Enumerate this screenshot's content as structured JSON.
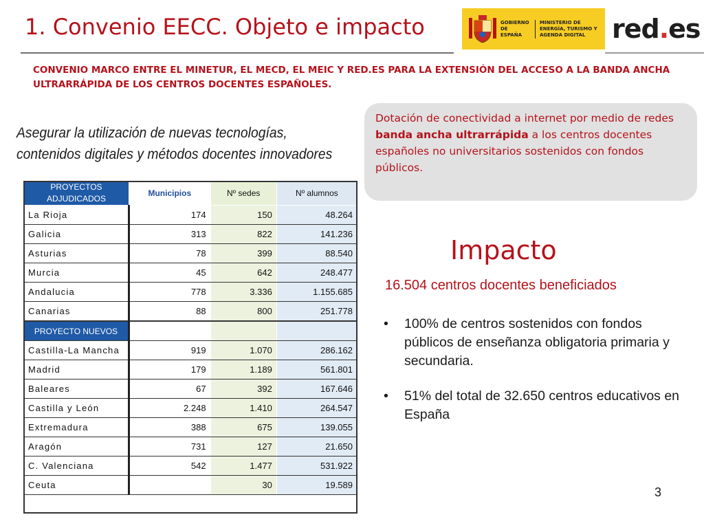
{
  "header": {
    "title": "1. Convenio EECC. Objeto e impacto",
    "gov_logo_line1": "GOBIERNO DE ESPAÑA",
    "gov_logo_line2": "MINISTERIO DE ENERGÍA, TURISMO Y AGENDA DIGITAL",
    "brand_main": "red",
    "brand_dot": ".",
    "brand_suffix": "es"
  },
  "subtitle": "CONVENIO MARCO ENTRE EL MINETUR, EL MECD, EL MEIC Y RED.ES PARA LA EXTENSIÓN DEL ACCESO A LA BANDA ANCHA ULTRARRÁPIDA DE LOS CENTROS DOCENTES ESPAÑOLES.",
  "goal": {
    "line1": "Asegurar la utilización de nuevas tecnologías,",
    "line2": "contenidos digitales y métodos docentes innovadores"
  },
  "callout": {
    "part1": "Dotación de conectividad a internet por medio de redes ",
    "bold": "banda ancha ultrarrápida",
    "part2": " a los centros docentes españoles no universitarios sostenidos con fondos públicos."
  },
  "impact": {
    "title": "Impacto",
    "subtitle": "16.504 centros docentes beneficiados",
    "bullet_symbol": "•",
    "bullets": [
      "100% de centros sostenidos con fondos públicos de enseñanza obligatoria primaria y secundaria.",
      "51% del total de 32.650 centros educativos en España"
    ]
  },
  "table": {
    "headers": [
      "PROYECTOS ADJUDICADOS",
      "Municipios",
      "Nº sedes",
      "Nº alumnos"
    ],
    "group1_rows": [
      [
        "La Rioja",
        "174",
        "150",
        "48.264"
      ],
      [
        "Galicia",
        "313",
        "822",
        "141.236"
      ],
      [
        "Asturias",
        "78",
        "399",
        "88.540"
      ],
      [
        "Murcia",
        "45",
        "642",
        "248.477"
      ],
      [
        "Andalucia",
        "778",
        "3.336",
        "1.155.685"
      ],
      [
        "Canarias",
        "88",
        "800",
        "251.778"
      ]
    ],
    "group2_label": "PROYECTO NUEVOS",
    "group2_rows": [
      [
        "Castilla-La Mancha",
        "919",
        "1.070",
        "286.162"
      ],
      [
        "Madrid",
        "179",
        "1.189",
        "561.801"
      ],
      [
        "Baleares",
        "67",
        "392",
        "167.646"
      ],
      [
        "Castilla y León",
        "2.248",
        "1.410",
        "264.547"
      ],
      [
        "Extremadura",
        "388",
        "675",
        "139.055"
      ],
      [
        "Aragón",
        "731",
        "127",
        "21.650"
      ],
      [
        "C. Valenciana",
        "542",
        "1.477",
        "531.922"
      ],
      [
        "Ceuta",
        "",
        "30",
        "19.589"
      ]
    ]
  },
  "page_number": "3",
  "colors": {
    "accent_red": "#b5121b",
    "header_blue": "#1f5aa6",
    "gov_yellow": "#f7cd24",
    "callout_gray": "#e1e1e1"
  }
}
